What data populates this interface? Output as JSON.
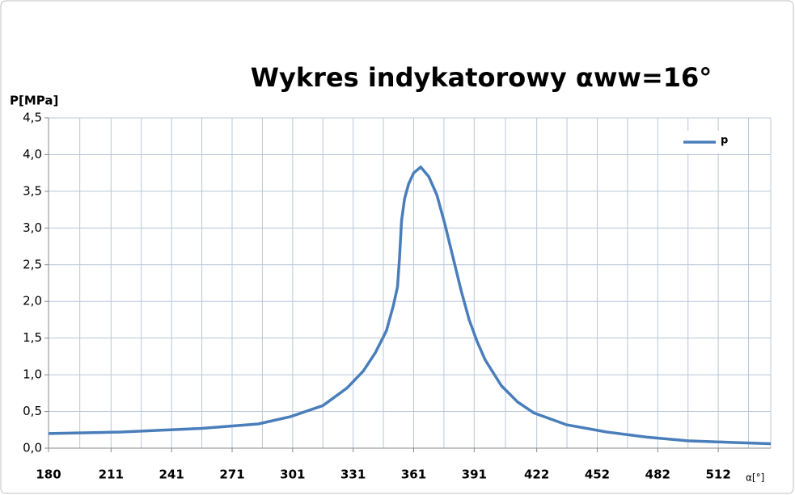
{
  "chart_data": {
    "type": "line",
    "title": "Wykres  indykatorowy αww=16°",
    "y_label": "P[MPa]",
    "x_label": "α[°]",
    "legend": "top-right",
    "grid": true,
    "xlim": [
      180,
      538
    ],
    "xticks": [
      180,
      211,
      241,
      271,
      301,
      331,
      361,
      391,
      422,
      452,
      482,
      512
    ],
    "ylim": [
      0,
      4.5
    ],
    "yticks": [
      {
        "value": 0,
        "label": "0,0"
      },
      {
        "value": 0.5,
        "label": "0,5"
      },
      {
        "value": 1,
        "label": "1,0"
      },
      {
        "value": 1.5,
        "label": "1,5"
      },
      {
        "value": 2,
        "label": "2,0"
      },
      {
        "value": 2.5,
        "label": "2,5"
      },
      {
        "value": 3,
        "label": "3,0"
      },
      {
        "value": 3.5,
        "label": "3,5"
      },
      {
        "value": 4,
        "label": "4,0"
      },
      {
        "value": 4.5,
        "label": "4,5"
      }
    ],
    "x": [
      180,
      216,
      256,
      284,
      300,
      316,
      328,
      336,
      342,
      347.5,
      351,
      353,
      354,
      355,
      356.5,
      358.5,
      361,
      364.5,
      368.5,
      372.5,
      376.5,
      380.5,
      384.5,
      388.5,
      392.5,
      396.5,
      404.5,
      412.5,
      420.6,
      436.6,
      456.7,
      476.7,
      496.8,
      517,
      538
    ],
    "series": [
      {
        "name": "p",
        "color": "#4a7ebb",
        "values": [
          0.2,
          0.22,
          0.27,
          0.33,
          0.43,
          0.58,
          0.82,
          1.05,
          1.3,
          1.6,
          1.95,
          2.2,
          2.6,
          3.1,
          3.4,
          3.6,
          3.75,
          3.83,
          3.7,
          3.45,
          3.05,
          2.6,
          2.15,
          1.75,
          1.45,
          1.2,
          0.85,
          0.63,
          0.48,
          0.32,
          0.22,
          0.15,
          0.1,
          0.08,
          0.06
        ]
      }
    ]
  }
}
